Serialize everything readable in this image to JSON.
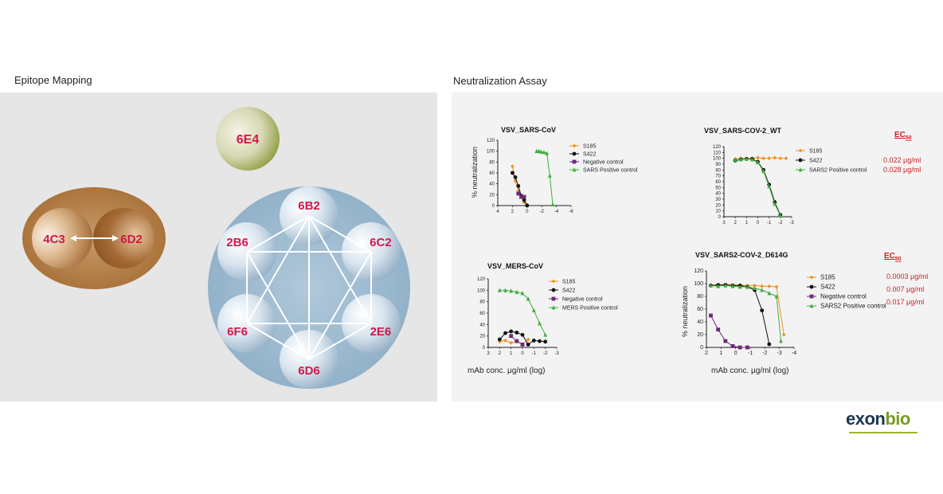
{
  "sections": {
    "left_title": "Epitope Mapping",
    "right_title": "Neutralization Assay"
  },
  "epitope": {
    "single": "6E4",
    "pair": [
      "4C3",
      "6D2"
    ],
    "ring": [
      "6B2",
      "6C2",
      "2E6",
      "6D6",
      "6F6",
      "2B6"
    ]
  },
  "legend_header": "EC",
  "legend_header_sub": "50",
  "colors": {
    "s185": "#f0901e",
    "s422": "#111111",
    "neg": "#6b2a7a",
    "pos": "#3fae3f",
    "ec50": "#cc2222",
    "epitope_label": "#d0184a"
  },
  "chart_data": [
    {
      "type": "line",
      "title": "VSV_SARS-CoV",
      "ylabel": "% neutralization",
      "xlabel": "",
      "xlim": [
        4,
        -6
      ],
      "xticks": [
        "4",
        "2",
        "0",
        "-2",
        "-4",
        "-6"
      ],
      "ylim": [
        0,
        120
      ],
      "yticks": [
        "0",
        "20",
        "40",
        "60",
        "80",
        "100",
        "120"
      ],
      "series": [
        {
          "name": "S185",
          "marker": "diamond",
          "x": [
            2,
            1.6,
            1.2,
            0.8,
            0.4,
            0
          ],
          "y": [
            72,
            45,
            27,
            15,
            6,
            2
          ]
        },
        {
          "name": "S422",
          "marker": "circle",
          "x": [
            2,
            1.6,
            1.2,
            0.8,
            0.4,
            0
          ],
          "y": [
            60,
            52,
            36,
            18,
            10,
            0
          ]
        },
        {
          "name": "Negative control",
          "marker": "square",
          "x": [
            1.2,
            0.8,
            0.4
          ],
          "y": [
            22,
            16,
            16
          ]
        },
        {
          "name": "SARS Positive control",
          "marker": "triangle",
          "x": [
            -1.3,
            -1.6,
            -1.9,
            -2.3,
            -2.7,
            -3.1,
            -3.5
          ],
          "y": [
            100,
            100,
            99,
            98,
            96,
            55,
            2
          ]
        }
      ],
      "ec50": []
    },
    {
      "type": "line",
      "title": "VSV_SARS-COV-2_WT",
      "ylabel": "",
      "xlabel": "",
      "xlim": [
        3,
        -3
      ],
      "xticks": [
        "3",
        "2",
        "1",
        "0",
        "-1",
        "-2",
        "-3"
      ],
      "ylim": [
        0,
        120
      ],
      "yticks": [
        "0",
        "10",
        "20",
        "30",
        "40",
        "50",
        "60",
        "70",
        "80",
        "90",
        "100",
        "110",
        "120"
      ],
      "series": [
        {
          "name": "S185",
          "marker": "diamond",
          "x": [
            2,
            1.5,
            1,
            0.5,
            0,
            -0.5,
            -1,
            -1.5,
            -2,
            -2.5
          ],
          "y": [
            99,
            100,
            100,
            100,
            101,
            100,
            100,
            101,
            100,
            100
          ]
        },
        {
          "name": "S422",
          "marker": "circle",
          "x": [
            2,
            1.5,
            1,
            0.5,
            0,
            -0.5,
            -1,
            -1.5,
            -2
          ],
          "y": [
            96,
            98,
            99,
            99,
            94,
            80,
            55,
            25,
            3
          ]
        },
        {
          "name": "SARS2 Positive control",
          "marker": "triangle",
          "x": [
            2,
            1.5,
            1,
            0.5,
            0,
            -0.5,
            -1,
            -1.5,
            -2
          ],
          "y": [
            97,
            98,
            99,
            98,
            93,
            78,
            52,
            22,
            2
          ]
        }
      ],
      "ec50": [
        "0.022 μg/ml",
        "0.028 μg/ml"
      ]
    },
    {
      "type": "line",
      "title": "VSV_MERS-CoV",
      "ylabel": "",
      "xlabel": "mAb conc. μg/ml (log)",
      "xlim": [
        3,
        -3
      ],
      "xticks": [
        "3",
        "2",
        "1",
        "0",
        "-1",
        "-2",
        "-3"
      ],
      "ylim": [
        0,
        120
      ],
      "yticks": [
        "0",
        "20",
        "40",
        "60",
        "80",
        "100",
        "120"
      ],
      "series": [
        {
          "name": "S185",
          "marker": "diamond",
          "x": [
            2,
            1.5,
            1,
            0.5,
            0,
            -0.5
          ],
          "y": [
            10,
            12,
            8,
            11,
            5,
            14
          ]
        },
        {
          "name": "S422",
          "marker": "circle",
          "x": [
            2,
            1.5,
            1,
            0.5,
            0,
            -0.5,
            -1,
            -1.5,
            -2
          ],
          "y": [
            14,
            25,
            28,
            26,
            22,
            5,
            12,
            11,
            10
          ]
        },
        {
          "name": "Negative control",
          "marker": "square",
          "x": [
            1,
            0.5,
            0
          ],
          "y": [
            20,
            11,
            5
          ]
        },
        {
          "name": "MERS Positive control",
          "marker": "triangle",
          "x": [
            2,
            1.5,
            1,
            0.5,
            0,
            -0.5,
            -1,
            -1.5,
            -2
          ],
          "y": [
            100,
            100,
            99,
            97,
            95,
            85,
            65,
            42,
            22
          ]
        }
      ],
      "ec50": []
    },
    {
      "type": "line",
      "title": "VSV_SARS2-COV-2_D614G",
      "ylabel": "% neutralization",
      "xlabel": "mAb conc. μg/ml (log)",
      "xlim": [
        2,
        -4
      ],
      "xticks": [
        "2",
        "1",
        "0",
        "-1",
        "-2",
        "-3",
        "-4"
      ],
      "ylim": [
        0,
        120
      ],
      "yticks": [
        "0",
        "20",
        "40",
        "60",
        "80",
        "100",
        "120"
      ],
      "series": [
        {
          "name": "S185",
          "marker": "diamond",
          "x": [
            1.7,
            1.2,
            0.7,
            0.2,
            -0.3,
            -0.8,
            -1.3,
            -1.8,
            -2.3,
            -2.8,
            -3.3
          ],
          "y": [
            98,
            98,
            99,
            98,
            98,
            97,
            97,
            96,
            96,
            95,
            20
          ]
        },
        {
          "name": "S422",
          "marker": "circle",
          "x": [
            1.7,
            1.2,
            0.7,
            0.2,
            -0.3,
            -0.8,
            -1.3,
            -1.8,
            -2.3
          ],
          "y": [
            97,
            98,
            98,
            97,
            97,
            95,
            90,
            58,
            5
          ]
        },
        {
          "name": "Negative control",
          "marker": "square",
          "x": [
            1.7,
            1.2,
            0.7,
            0.2,
            -0.3,
            -0.8
          ],
          "y": [
            50,
            28,
            10,
            2,
            0,
            0
          ]
        },
        {
          "name": "SARS2 Positive control",
          "marker": "triangle",
          "x": [
            1.7,
            1.2,
            0.7,
            0.2,
            -0.3,
            -0.8,
            -1.3,
            -1.8,
            -2.3,
            -2.8,
            -3.1
          ],
          "y": [
            97,
            96,
            97,
            96,
            95,
            95,
            93,
            90,
            85,
            80,
            10
          ]
        }
      ],
      "ec50": [
        "0.0003 μg/ml",
        "0.007 μg/ml",
        "0.017 μg/ml"
      ]
    }
  ],
  "logo": {
    "part1": "exon",
    "part2": "bio"
  }
}
